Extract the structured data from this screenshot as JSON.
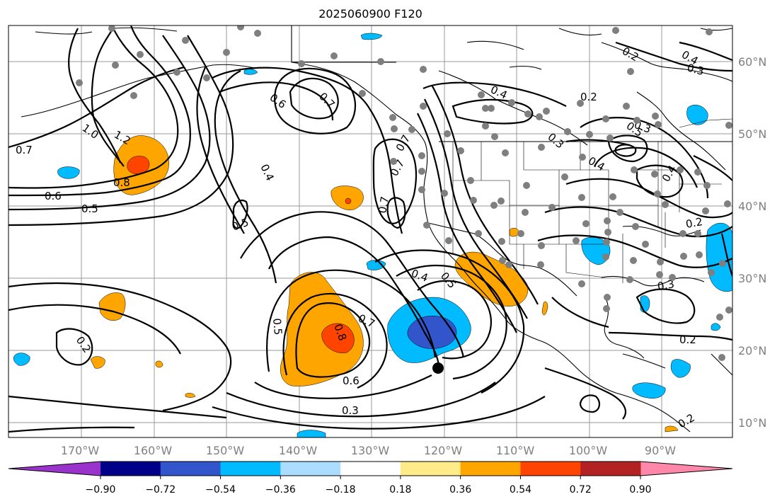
{
  "title": "2025060900 F120",
  "map": {
    "lat_labels": [
      "60°N",
      "50°N",
      "40°N",
      "30°N",
      "20°N",
      "10°N"
    ],
    "lon_labels": [
      "170°W",
      "160°W",
      "150°W",
      "140°W",
      "130°W",
      "120°W",
      "110°W",
      "100°W",
      "90°W"
    ]
  },
  "contour_labels": [
    "0.7",
    "1.0",
    "1.2",
    "0.8",
    "0.6",
    "0.5",
    "0.6",
    "0.7",
    "0.4",
    "0.5",
    "0.7",
    "0.7",
    "0.7",
    "0.4",
    "0.5",
    "0.7",
    "0.8",
    "0.6",
    "0.3",
    "0.5",
    "0.2",
    "0.4",
    "0.2",
    "0.3",
    "0.4",
    "0.3",
    "0.5",
    "0.4",
    "0.2",
    "0.3",
    "0.2",
    "0.2",
    "0.2",
    "0.3",
    "0.4"
  ],
  "colorbar": {
    "colors": [
      "#9933cc",
      "#000088",
      "#3355cc",
      "#00bbff",
      "#aaddff",
      "#ffffff",
      "#ffeb88",
      "#ffa500",
      "#ff4400",
      "#b22222",
      "#ff88aa"
    ],
    "ticks": [
      "−0.90",
      "−0.72",
      "−0.54",
      "−0.36",
      "−0.18",
      "0.18",
      "0.36",
      "0.54",
      "0.72",
      "0.90"
    ]
  }
}
